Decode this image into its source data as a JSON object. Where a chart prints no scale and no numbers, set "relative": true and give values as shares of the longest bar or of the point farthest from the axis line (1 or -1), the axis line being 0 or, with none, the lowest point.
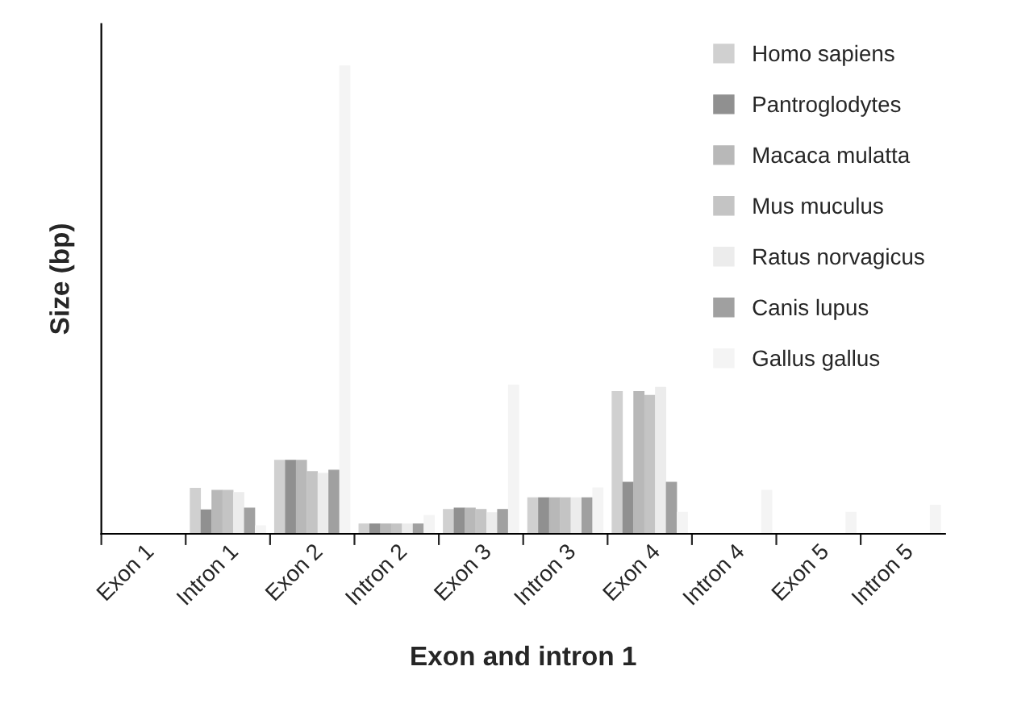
{
  "chart_data": {
    "type": "bar",
    "relative": true,
    "xlabel": "Exon and intron 1",
    "ylabel": "Size (bp)",
    "categories": [
      "Exon 1",
      "Intron 1",
      "Exon 2",
      "Intron 2",
      "Exon 3",
      "Intron 3",
      "Exon 4",
      "Intron 4",
      "Exon 5",
      "Intron 5"
    ],
    "series": [
      {
        "name": "Homo sapiens",
        "color": "#d0d0d0",
        "values": [
          null,
          0.097,
          0.157,
          0.021,
          0.052,
          0.077,
          0.304,
          null,
          null,
          null
        ]
      },
      {
        "name": "Pantroglodytes",
        "color": "#909090",
        "values": [
          null,
          0.051,
          0.157,
          0.021,
          0.055,
          0.077,
          0.11,
          null,
          null,
          null
        ]
      },
      {
        "name": "Macaca mulatta",
        "color": "#b8b8b8",
        "values": [
          null,
          0.093,
          0.157,
          0.021,
          0.055,
          0.077,
          0.304,
          null,
          null,
          null
        ]
      },
      {
        "name": "Mus muculus",
        "color": "#c4c4c4",
        "values": [
          null,
          0.093,
          0.133,
          0.021,
          0.052,
          0.077,
          0.296,
          null,
          null,
          null
        ]
      },
      {
        "name": "Ratus norvagicus",
        "color": "#ececec",
        "values": [
          null,
          0.088,
          0.129,
          0.021,
          0.045,
          0.077,
          0.313,
          null,
          null,
          null
        ]
      },
      {
        "name": "Canis lupus",
        "color": "#a0a0a0",
        "values": [
          null,
          0.055,
          0.136,
          0.021,
          0.052,
          0.077,
          0.11,
          null,
          null,
          null
        ]
      },
      {
        "name": "Gallus gallus",
        "color": "#f4f4f4",
        "values": [
          null,
          0.017,
          1.0,
          0.039,
          0.318,
          0.098,
          0.046,
          0.093,
          0.046,
          0.061
        ]
      }
    ],
    "legend": "top right",
    "grid": false
  }
}
